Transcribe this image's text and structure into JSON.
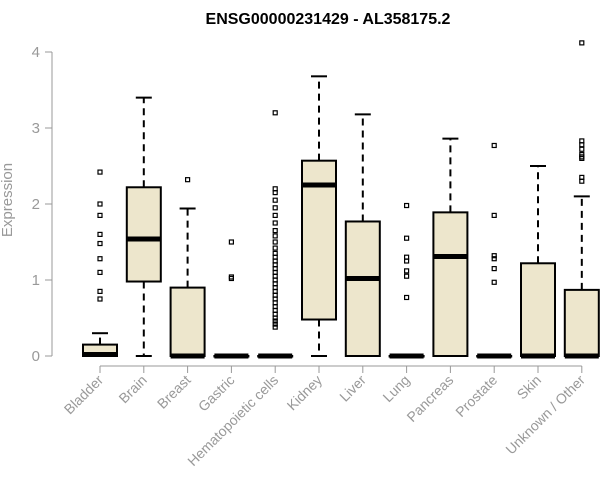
{
  "chart_data": {
    "type": "boxplot",
    "title": "ENSG00000231429 - AL358175.2",
    "ylabel": "Expression",
    "xlabel": "",
    "ylim": [
      0,
      4.2
    ],
    "yticks": [
      "0",
      "1",
      "2",
      "3",
      "4"
    ],
    "grid": false,
    "legend": "none",
    "colors": {
      "box_fill": "#ede6cc",
      "box_stroke": "#000000",
      "axis": "#999999"
    },
    "categories": [
      "Bladder",
      "Brain",
      "Breast",
      "Gastric",
      "Hematopoietic cells",
      "Kidney",
      "Liver",
      "Lung",
      "Pancreas",
      "Prostate",
      "Skin",
      "Unknown / Other"
    ],
    "boxes": [
      {
        "category": "Bladder",
        "low": 0,
        "q1": 0,
        "median": 0.02,
        "q3": 0.15,
        "high": 0.3,
        "outliers": [
          0.75,
          0.85,
          1.1,
          1.28,
          1.48,
          1.6,
          1.85,
          2.0,
          2.42
        ]
      },
      {
        "category": "Brain",
        "low": 0,
        "q1": 0.98,
        "median": 1.54,
        "q3": 2.22,
        "high": 3.4,
        "outliers": []
      },
      {
        "category": "Breast",
        "low": 0,
        "q1": 0,
        "median": 0,
        "q3": 0.9,
        "high": 1.94,
        "outliers": [
          2.32
        ]
      },
      {
        "category": "Gastric",
        "low": 0,
        "q1": 0,
        "median": 0,
        "q3": 0,
        "high": 0,
        "outliers": [
          1.02,
          1.04,
          1.5
        ]
      },
      {
        "category": "Hematopoietic cells",
        "low": 0,
        "q1": 0,
        "median": 0,
        "q3": 0,
        "high": 0,
        "outliers": [
          0.38,
          0.42,
          0.46,
          0.5,
          0.55,
          0.6,
          0.65,
          0.7,
          0.75,
          0.8,
          0.85,
          0.9,
          0.95,
          1.0,
          1.05,
          1.1,
          1.15,
          1.2,
          1.25,
          1.3,
          1.35,
          1.42,
          1.5,
          1.58,
          1.65,
          1.75,
          1.85,
          1.95,
          2.05,
          2.15,
          2.2,
          3.2
        ]
      },
      {
        "category": "Kidney",
        "low": 0,
        "q1": 0.48,
        "median": 2.25,
        "q3": 2.57,
        "high": 3.68,
        "outliers": []
      },
      {
        "category": "Liver",
        "low": 0,
        "q1": 0,
        "median": 1.02,
        "q3": 1.77,
        "high": 3.18,
        "outliers": []
      },
      {
        "category": "Lung",
        "low": 0,
        "q1": 0,
        "median": 0,
        "q3": 0,
        "high": 0,
        "outliers": [
          0.77,
          1.05,
          1.12,
          1.25,
          1.3,
          1.55,
          1.98
        ]
      },
      {
        "category": "Pancreas",
        "low": 0,
        "q1": 0,
        "median": 1.31,
        "q3": 1.89,
        "high": 2.86,
        "outliers": []
      },
      {
        "category": "Prostate",
        "low": 0,
        "q1": 0,
        "median": 0,
        "q3": 0,
        "high": 0,
        "outliers": [
          0.97,
          1.15,
          1.28,
          1.32,
          1.85,
          2.77
        ]
      },
      {
        "category": "Skin",
        "low": 0,
        "q1": 0,
        "median": 0,
        "q3": 1.22,
        "high": 2.5,
        "outliers": []
      },
      {
        "category": "Unknown / Other",
        "low": 0,
        "q1": 0,
        "median": 0,
        "q3": 0.87,
        "high": 2.1,
        "outliers": [
          2.3,
          2.35,
          2.6,
          2.62,
          2.65,
          2.72,
          2.78,
          2.83,
          4.12
        ]
      }
    ]
  }
}
